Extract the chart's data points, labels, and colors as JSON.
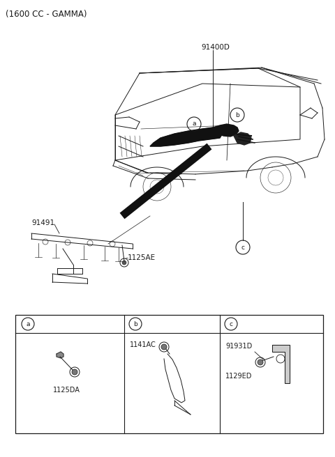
{
  "title": "(1600 CC - GAMMA)",
  "bg": "#ffffff",
  "lc": "#1a1a1a",
  "label_91400D": "91400D",
  "label_91491": "91491",
  "label_1125AE": "1125AE",
  "label_1125DA": "1125DA",
  "label_1141AC": "1141AC",
  "label_91931D": "91931D",
  "label_1129ED": "1129ED",
  "figsize": [
    4.8,
    6.56
  ],
  "dpi": 100
}
